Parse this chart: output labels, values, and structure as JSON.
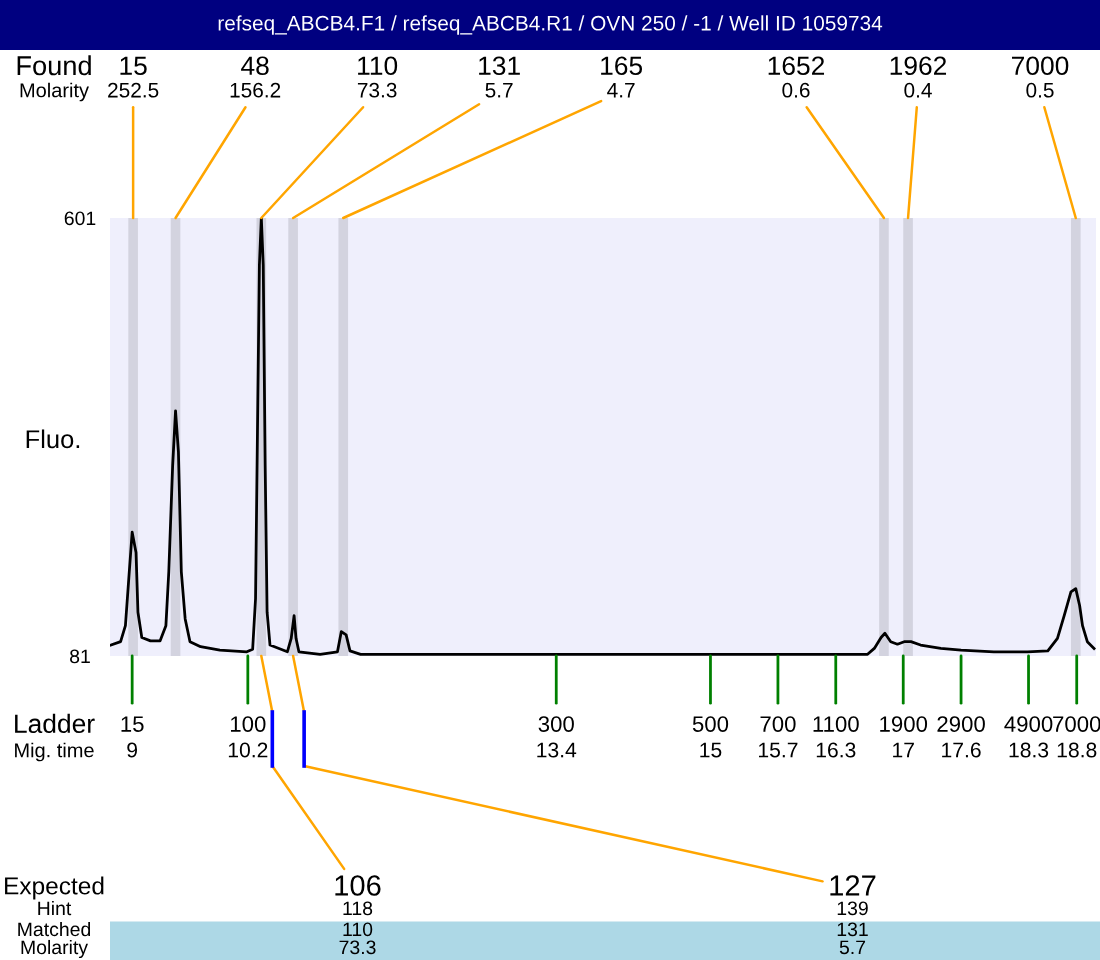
{
  "chart_data": {
    "type": "line",
    "title": "refseq_ABCB4.F1 / refseq_ABCB4.R1 / OVN 250 / -1 / Well ID 1059734",
    "xlabel": "Mig. time",
    "ylabel": "Fluo.",
    "xlim": [
      8.77,
      19.0
    ],
    "ylim": [
      81,
      601
    ],
    "yticks": [
      81,
      601
    ],
    "xticks": [
      9,
      10.2,
      13.4,
      15,
      15.7,
      16.3,
      17,
      17.6,
      18.3,
      18.8
    ],
    "x": [
      8.78,
      8.88,
      8.93,
      8.97,
      9.0,
      9.04,
      9.06,
      9.1,
      9.19,
      9.29,
      9.35,
      9.38,
      9.42,
      9.45,
      9.48,
      9.51,
      9.55,
      9.6,
      9.71,
      9.91,
      10.19,
      10.25,
      10.28,
      10.3,
      10.32,
      10.34,
      10.36,
      10.38,
      10.4,
      10.43,
      10.61,
      10.65,
      10.68,
      10.7,
      10.73,
      10.95,
      11.13,
      11.17,
      11.22,
      11.26,
      11.37,
      14.14,
      16.63,
      16.7,
      16.77,
      16.81,
      16.87,
      16.94,
      17.01,
      17.08,
      17.18,
      17.39,
      17.6,
      17.94,
      18.29,
      18.5,
      18.6,
      18.67,
      18.74,
      18.79,
      18.83,
      18.86,
      18.91,
      18.98
    ],
    "series": [
      {
        "color": "#000000",
        "values": [
          94,
          98,
          117,
          181,
          228,
          204,
          133,
          103,
          99,
          99,
          117,
          181,
          307,
          372,
          323,
          181,
          125,
          98,
          92,
          88,
          86,
          89,
          149,
          347,
          545,
          601,
          545,
          307,
          133,
          94,
          86,
          102,
          129,
          102,
          86,
          83,
          86,
          110,
          106,
          87,
          83,
          83,
          83,
          90,
          103,
          108,
          98,
          95,
          98,
          98,
          94,
          90,
          88,
          86,
          86,
          87,
          102,
          129,
          157,
          161,
          141,
          117,
          98,
          90
        ]
      }
    ],
    "bands": [
      {
        "axis": "x",
        "from": 8.96,
        "to": 9.06,
        "label": "15",
        "color": "#d3d3df"
      },
      {
        "axis": "x",
        "from": 9.4,
        "to": 9.5,
        "label": "48",
        "color": "#d3d3df"
      },
      {
        "axis": "x",
        "from": 10.29,
        "to": 10.39,
        "label": "110",
        "color": "#d3d3df"
      },
      {
        "axis": "x",
        "from": 10.62,
        "to": 10.72,
        "label": "131",
        "color": "#d3d3df"
      },
      {
        "axis": "x",
        "from": 11.14,
        "to": 11.24,
        "label": "165",
        "color": "#d3d3df"
      },
      {
        "axis": "x",
        "from": 16.75,
        "to": 16.85,
        "label": "1652",
        "color": "#d3d3df"
      },
      {
        "axis": "x",
        "from": 17.0,
        "to": 17.1,
        "label": "1962",
        "color": "#d3d3df"
      },
      {
        "axis": "x",
        "from": 18.74,
        "to": 18.84,
        "label": "7000",
        "color": "#d3d3df"
      }
    ],
    "annotations": [
      "Found",
      "Molarity",
      "Ladder",
      "Expected",
      "Hint",
      "Matched",
      "Molarity",
      "118",
      "110",
      "73.3",
      "139",
      "131",
      "5.7",
      {
        "text": "252.5",
        "x": 9.01,
        "y": 601
      },
      {
        "text": "156.2",
        "x": 9.45,
        "y": 601
      },
      {
        "text": "73.3",
        "x": 10.34,
        "y": 601
      },
      {
        "text": "5.7",
        "x": 10.67,
        "y": 601
      },
      {
        "text": "4.7",
        "x": 11.19,
        "y": 601
      },
      {
        "text": "0.6",
        "x": 16.8,
        "y": 601
      },
      {
        "text": "0.4",
        "x": 17.05,
        "y": 601
      },
      {
        "text": "0.5",
        "x": 18.79,
        "y": 601
      },
      {
        "text": "15",
        "x": 9,
        "y": 81
      },
      {
        "text": "100",
        "x": 10.2,
        "y": 81
      },
      {
        "text": "300",
        "x": 13.4,
        "y": 81
      },
      {
        "text": "500",
        "x": 15,
        "y": 81
      },
      {
        "text": "700",
        "x": 15.7,
        "y": 81
      },
      {
        "text": "1100",
        "x": 16.3,
        "y": 81
      },
      {
        "text": "1900",
        "x": 17,
        "y": 81
      },
      {
        "text": "2900",
        "x": 17.6,
        "y": 81
      },
      {
        "text": "4900",
        "x": 18.3,
        "y": 81
      },
      {
        "text": "7000",
        "x": 18.8,
        "y": 81
      },
      {
        "text": "106",
        "x": 10.34,
        "y": 81
      },
      {
        "text": "127",
        "x": 10.67,
        "y": 81
      }
    ]
  }
}
